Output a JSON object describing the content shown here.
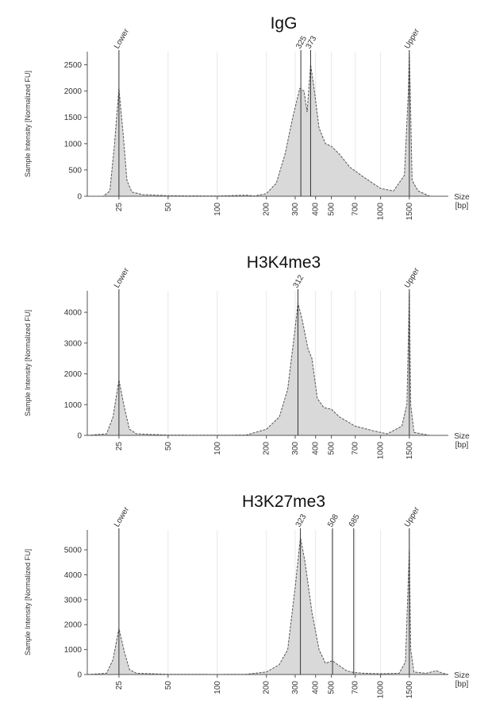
{
  "chart_data": [
    {
      "type": "area",
      "title": "IgG",
      "y_label": "Sample Intensity [Normalized FU]",
      "x_label": [
        "Size",
        "[bp]"
      ],
      "log_x": true,
      "grid": true,
      "color": "#d9d9d9",
      "line_color": "#555555",
      "xlim": [
        16,
        2600
      ],
      "ylim": [
        0,
        2750
      ],
      "yticks": [
        0,
        500,
        1000,
        1500,
        2000,
        2500
      ],
      "xticks": [
        25,
        50,
        100,
        200,
        300,
        400,
        500,
        700,
        1000,
        1500
      ],
      "markers": [
        {
          "x": 25,
          "label": "Lower"
        },
        {
          "x": 325
        },
        {
          "x": 373
        },
        {
          "x": 1500,
          "label": "Upper"
        }
      ],
      "x": [
        16,
        20,
        22,
        23.5,
        25,
        26.5,
        28,
        30,
        35,
        50,
        100,
        150,
        170,
        200,
        230,
        260,
        290,
        320,
        340,
        355,
        373,
        390,
        420,
        460,
        500,
        560,
        650,
        800,
        1000,
        1200,
        1400,
        1480,
        1500,
        1520,
        1560,
        1700,
        2000,
        2600
      ],
      "values": [
        0,
        0,
        100,
        1000,
        2050,
        1200,
        300,
        80,
        30,
        10,
        5,
        20,
        5,
        50,
        250,
        800,
        1500,
        2050,
        2000,
        1600,
        2500,
        2100,
        1300,
        1000,
        950,
        800,
        550,
        350,
        150,
        100,
        400,
        2000,
        2700,
        2000,
        300,
        100,
        0,
        0
      ]
    },
    {
      "type": "area",
      "title": "H3K4me3",
      "y_label": "Sample Intensity [Normalized FU]",
      "x_label": [
        "Size",
        "[bp]"
      ],
      "log_x": true,
      "grid": true,
      "color": "#d9d9d9",
      "line_color": "#555555",
      "xlim": [
        16,
        2600
      ],
      "ylim": [
        0,
        4700
      ],
      "yticks": [
        0,
        1000,
        2000,
        3000,
        4000
      ],
      "xticks": [
        25,
        50,
        100,
        200,
        300,
        400,
        500,
        700,
        1000,
        1500
      ],
      "markers": [
        {
          "x": 25,
          "label": "Lower"
        },
        {
          "x": 312
        },
        {
          "x": 1500,
          "label": "Upper"
        }
      ],
      "x": [
        16,
        21,
        23,
        25,
        27,
        29,
        32,
        50,
        100,
        150,
        200,
        240,
        270,
        300,
        312,
        330,
        360,
        380,
        410,
        450,
        500,
        560,
        700,
        900,
        1100,
        1350,
        1450,
        1500,
        1530,
        1600,
        2000,
        2600
      ],
      "values": [
        0,
        50,
        600,
        1800,
        900,
        200,
        50,
        10,
        5,
        10,
        200,
        600,
        1500,
        3500,
        4300,
        3800,
        2800,
        2500,
        1200,
        900,
        850,
        600,
        300,
        150,
        50,
        300,
        1000,
        4600,
        1000,
        100,
        0,
        0
      ]
    },
    {
      "type": "area",
      "title": "H3K27me3",
      "y_label": "Sample Intensity [Normalized FU]",
      "x_label": [
        "Size",
        "[bp]"
      ],
      "log_x": true,
      "grid": true,
      "color": "#d9d9d9",
      "line_color": "#555555",
      "xlim": [
        16,
        2600
      ],
      "ylim": [
        0,
        5800
      ],
      "yticks": [
        0,
        1000,
        2000,
        3000,
        4000,
        5000
      ],
      "xticks": [
        25,
        50,
        100,
        200,
        300,
        400,
        500,
        700,
        1000,
        1500
      ],
      "markers": [
        {
          "x": 25,
          "label": "Lower"
        },
        {
          "x": 323
        },
        {
          "x": 508
        },
        {
          "x": 685
        },
        {
          "x": 1500,
          "label": "Upper"
        }
      ],
      "x": [
        16,
        21,
        23,
        25,
        27,
        29,
        32,
        50,
        100,
        150,
        200,
        240,
        270,
        300,
        323,
        345,
        380,
        420,
        460,
        508,
        560,
        620,
        685,
        800,
        1000,
        1300,
        1420,
        1500,
        1530,
        1600,
        1900,
        2200,
        2400,
        2600
      ],
      "values": [
        0,
        50,
        600,
        1850,
        900,
        200,
        50,
        10,
        5,
        10,
        100,
        400,
        1000,
        3500,
        5500,
        4500,
        2500,
        1000,
        450,
        550,
        350,
        150,
        80,
        50,
        30,
        50,
        500,
        5000,
        1000,
        100,
        50,
        150,
        50,
        0
      ]
    }
  ]
}
